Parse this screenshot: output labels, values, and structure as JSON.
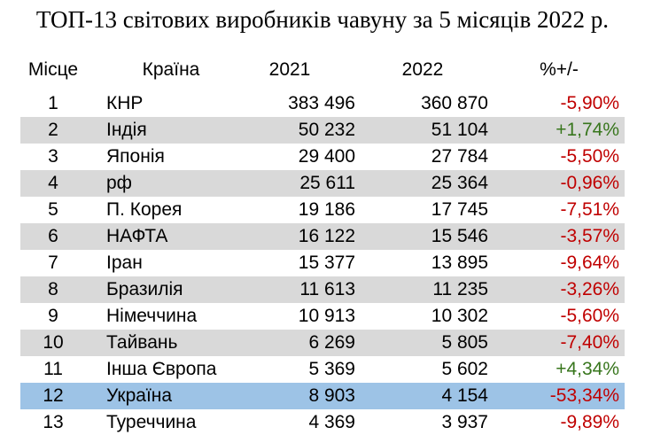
{
  "title": "ТОП-13 світових виробників чавуну за 5 місяців 2022 р.",
  "colors": {
    "shade": "#d9d9d9",
    "highlight": "#9dc3e6",
    "negative": "#c00000",
    "positive": "#38761d"
  },
  "chart_data": {
    "type": "table",
    "title": "ТОП-13 світових виробників чавуну за 5 місяців 2022 р.",
    "columns": [
      "Місце",
      "Країна",
      "2021",
      "2022",
      "%+/-"
    ],
    "highlighted_row": 12,
    "rows": [
      {
        "rank": "1",
        "country": "КНР",
        "y2021": "383 496",
        "y2022": "360 870",
        "change": "-5,90%",
        "sign": "neg"
      },
      {
        "rank": "2",
        "country": "Індія",
        "y2021": "50 232",
        "y2022": "51 104",
        "change": "+1,74%",
        "sign": "pos"
      },
      {
        "rank": "3",
        "country": "Японія",
        "y2021": "29 400",
        "y2022": "27 784",
        "change": "-5,50%",
        "sign": "neg"
      },
      {
        "rank": "4",
        "country": "рф",
        "y2021": "25 611",
        "y2022": "25 364",
        "change": "-0,96%",
        "sign": "neg"
      },
      {
        "rank": "5",
        "country": "П. Корея",
        "y2021": "19 186",
        "y2022": "17 745",
        "change": "-7,51%",
        "sign": "neg"
      },
      {
        "rank": "6",
        "country": "НАФТА",
        "y2021": "16 122",
        "y2022": "15 546",
        "change": "-3,57%",
        "sign": "neg"
      },
      {
        "rank": "7",
        "country": "Іран",
        "y2021": "15 377",
        "y2022": "13 895",
        "change": "-9,64%",
        "sign": "neg"
      },
      {
        "rank": "8",
        "country": "Бразилія",
        "y2021": "11 613",
        "y2022": "11 235",
        "change": "-3,26%",
        "sign": "neg"
      },
      {
        "rank": "9",
        "country": "Німеччина",
        "y2021": "10 913",
        "y2022": "10 302",
        "change": "-5,60%",
        "sign": "neg"
      },
      {
        "rank": "10",
        "country": "Тайвань",
        "y2021": "6 269",
        "y2022": "5 805",
        "change": "-7,40%",
        "sign": "neg"
      },
      {
        "rank": "11",
        "country": "Інша Європа",
        "y2021": "5 369",
        "y2022": "5 602",
        "change": "+4,34%",
        "sign": "pos"
      },
      {
        "rank": "12",
        "country": "Україна",
        "y2021": "8 903",
        "y2022": "4 154",
        "change": "-53,34%",
        "sign": "neg"
      },
      {
        "rank": "13",
        "country": "Туреччина",
        "y2021": "4 369",
        "y2022": "3 937",
        "change": "-9,89%",
        "sign": "neg"
      }
    ]
  }
}
